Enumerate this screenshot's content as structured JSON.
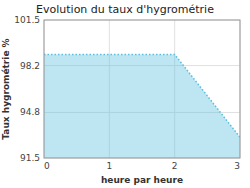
{
  "chart_data": {
    "type": "area",
    "title": "Evolution du taux d'hygrométrie",
    "xlabel": "heure par heure",
    "ylabel": "Taux hygrométrie %",
    "x": [
      0,
      2,
      3
    ],
    "values": [
      99.0,
      99.0,
      93.0
    ],
    "color": "#5bbfdf",
    "line_style": "dotted",
    "xlim": [
      0,
      3
    ],
    "ylim": [
      91.5,
      101.5
    ],
    "xticks": [
      0,
      1,
      2,
      3
    ],
    "yticks": [
      91.5,
      94.8,
      98.2,
      101.5
    ],
    "grid": true
  }
}
